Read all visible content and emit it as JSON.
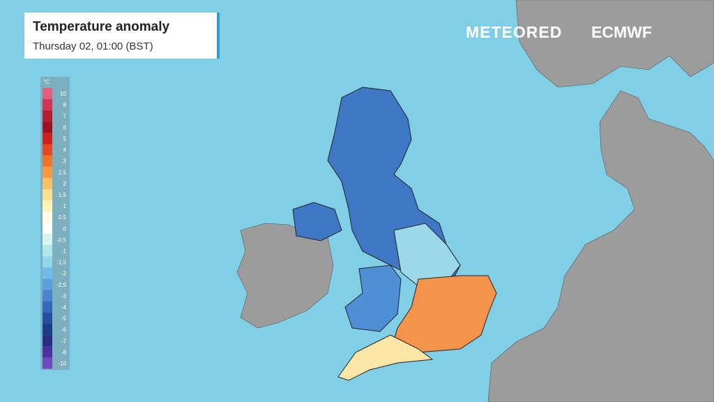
{
  "header": {
    "title": "Temperature anomaly",
    "subtitle": "Thursday 02, 01:00 (BST)"
  },
  "logos": [
    "METEORED",
    "ECMWF"
  ],
  "legend": {
    "unit": "°C",
    "entries": [
      {
        "label": "10",
        "color": "#e25f7c"
      },
      {
        "label": "8",
        "color": "#d13454"
      },
      {
        "label": "7",
        "color": "#b31d32"
      },
      {
        "label": "6",
        "color": "#9e1120"
      },
      {
        "label": "5",
        "color": "#cf2020"
      },
      {
        "label": "4",
        "color": "#e6491e"
      },
      {
        "label": "3",
        "color": "#ef7628"
      },
      {
        "label": "2.5",
        "color": "#f49a40"
      },
      {
        "label": "2",
        "color": "#f7c062"
      },
      {
        "label": "1.5",
        "color": "#fae08c"
      },
      {
        "label": "1",
        "color": "#fff4b2"
      },
      {
        "label": "0.5",
        "color": "#fffde2"
      },
      {
        "label": "0",
        "color": "#ffffff"
      },
      {
        "label": "-0.5",
        "color": "#d9f4f0"
      },
      {
        "label": "-1",
        "color": "#b1e6ea"
      },
      {
        "label": "-1.5",
        "color": "#91d6ea"
      },
      {
        "label": "-2",
        "color": "#70bce8"
      },
      {
        "label": "-2.5",
        "color": "#5aa0e0"
      },
      {
        "label": "-3",
        "color": "#4884d0"
      },
      {
        "label": "-4",
        "color": "#3468bc"
      },
      {
        "label": "-5",
        "color": "#2450a0"
      },
      {
        "label": "-6",
        "color": "#183c88"
      },
      {
        "label": "-7",
        "color": "#2b2b80"
      },
      {
        "label": "-8",
        "color": "#4a30a0"
      },
      {
        "label": "-10",
        "color": "#7048c0"
      }
    ]
  }
}
